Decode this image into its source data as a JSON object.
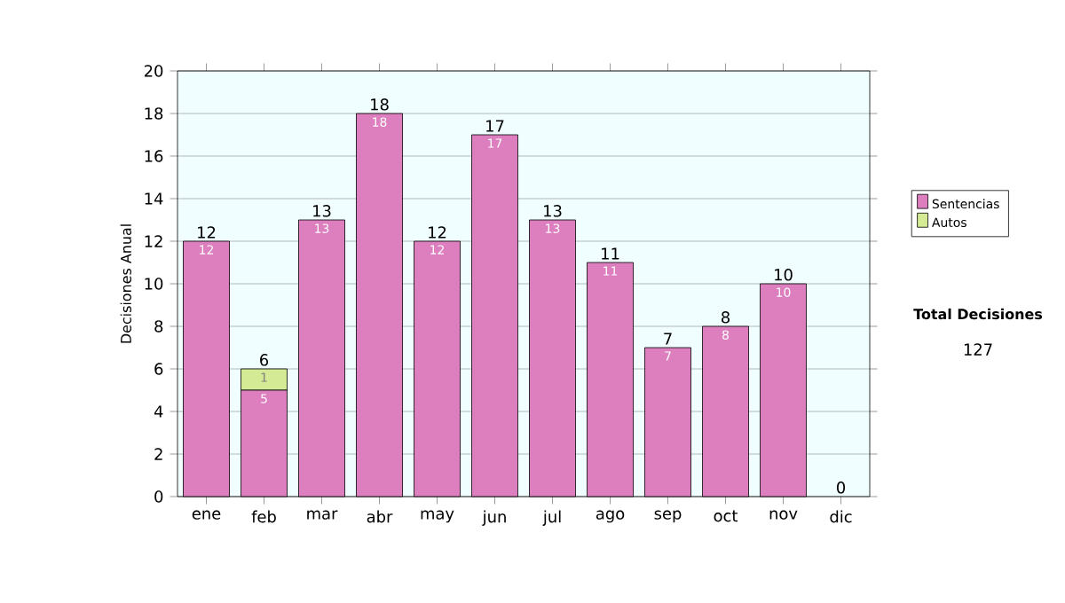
{
  "chart_data": {
    "type": "bar",
    "stacked": true,
    "ylabel": "Decisiones Anual",
    "categories": [
      "ene",
      "feb",
      "mar",
      "abr",
      "may",
      "jun",
      "jul",
      "ago",
      "sep",
      "oct",
      "nov",
      "dic"
    ],
    "series": [
      {
        "name": "Sentencias",
        "color": "#dd7fbf",
        "values": [
          12,
          5,
          13,
          18,
          12,
          17,
          13,
          11,
          7,
          8,
          10,
          0
        ],
        "value_labels": [
          "12",
          "5",
          "13",
          "18",
          "12",
          "17",
          "13",
          "11",
          "7",
          "8",
          "10",
          null
        ]
      },
      {
        "name": "Autos",
        "color": "#d4ea94",
        "values": [
          0,
          1,
          0,
          0,
          0,
          0,
          0,
          0,
          0,
          0,
          0,
          0
        ],
        "value_labels": [
          null,
          "1",
          null,
          null,
          null,
          null,
          null,
          null,
          null,
          null,
          null,
          null
        ]
      }
    ],
    "totals": [
      "12",
      "6",
      "13",
      "18",
      "12",
      "17",
      "13",
      "11",
      "7",
      "8",
      "10",
      "0"
    ],
    "ylim": [
      0,
      20
    ],
    "yticks": [
      0,
      2,
      4,
      6,
      8,
      10,
      12,
      14,
      16,
      18,
      20
    ],
    "grid": "y",
    "legend": "right",
    "annotations": [
      "Total Decisiones",
      "127"
    ]
  }
}
